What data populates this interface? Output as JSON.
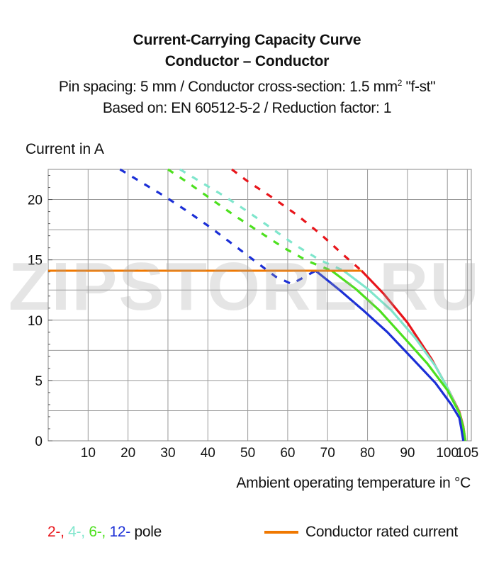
{
  "title": {
    "line1": "Current-Carrying Capacity Curve",
    "line2": "Conductor – Conductor",
    "line3_prefix": "Pin spacing: 5 mm / Conductor cross-section: 1.5 mm",
    "line3_sup": "2",
    "line3_suffix": " \"f-st\"",
    "line4": "Based on: EN 60512-5-2 / Reduction factor: 1"
  },
  "legend": {
    "p2": "2-,",
    "p4": "4-,",
    "p6": "6-,",
    "p12": "12-",
    "pole": "pole",
    "rated": "Conductor rated current"
  },
  "watermark": "ZIPSTORE.RU",
  "colors": {
    "p2": "#e8151b",
    "p4": "#7fe6cc",
    "p6": "#4de01e",
    "p12": "#1b2fd6",
    "rated": "#f07800",
    "grid": "#999999"
  },
  "chart_data": {
    "type": "line",
    "xlabel": "Ambient operating temperature in °C",
    "ylabel": "Current in A",
    "xlim": [
      0,
      106
    ],
    "ylim": [
      0,
      22.5
    ],
    "xticks": [
      10,
      20,
      30,
      40,
      50,
      60,
      70,
      80,
      90,
      100,
      105
    ],
    "yticks": [
      0,
      5,
      10,
      15,
      20
    ],
    "grid": true,
    "series": [
      {
        "name": "2-",
        "color": "#e8151b",
        "dashed": [
          [
            46,
            22.5
          ],
          [
            50,
            21.5
          ],
          [
            56,
            20.2
          ],
          [
            62,
            18.8
          ],
          [
            68,
            17.2
          ],
          [
            74,
            15.4
          ],
          [
            78.5,
            14.1
          ]
        ],
        "solid": [
          [
            78.5,
            14.1
          ],
          [
            84,
            12.2
          ],
          [
            90,
            9.8
          ],
          [
            96,
            6.8
          ],
          [
            100,
            4.4
          ],
          [
            103,
            2.4
          ],
          [
            104,
            1.2
          ],
          [
            104.5,
            0
          ]
        ]
      },
      {
        "name": "4-",
        "color": "#7fe6cc",
        "dashed": [
          [
            33,
            22.5
          ],
          [
            38,
            21.5
          ],
          [
            44,
            20.3
          ],
          [
            50,
            19.0
          ],
          [
            56,
            17.6
          ],
          [
            62,
            16.2
          ],
          [
            68,
            15.0
          ],
          [
            74,
            14.1
          ]
        ],
        "solid": [
          [
            74,
            14.1
          ],
          [
            80,
            12.6
          ],
          [
            86,
            10.8
          ],
          [
            92,
            8.5
          ],
          [
            97,
            6.2
          ],
          [
            100,
            4.4
          ],
          [
            103,
            2.3
          ],
          [
            104,
            1.1
          ],
          [
            104.5,
            0
          ]
        ]
      },
      {
        "name": "6-",
        "color": "#4de01e",
        "dashed": [
          [
            30,
            22.5
          ],
          [
            35,
            21.4
          ],
          [
            41,
            20.0
          ],
          [
            47,
            18.6
          ],
          [
            53,
            17.3
          ],
          [
            59,
            16.0
          ],
          [
            65,
            14.9
          ],
          [
            71,
            14.1
          ]
        ],
        "solid": [
          [
            71,
            14.1
          ],
          [
            77,
            12.6
          ],
          [
            83,
            10.8
          ],
          [
            89,
            8.6
          ],
          [
            95,
            6.4
          ],
          [
            100,
            4.2
          ],
          [
            103,
            2.3
          ],
          [
            104,
            1.1
          ],
          [
            104.5,
            0
          ]
        ]
      },
      {
        "name": "12-",
        "color": "#1b2fd6",
        "dashed": [
          [
            18,
            22.5
          ],
          [
            23,
            21.5
          ],
          [
            29,
            20.3
          ],
          [
            35,
            19.0
          ],
          [
            41,
            17.6
          ],
          [
            47,
            16.1
          ],
          [
            53,
            14.6
          ],
          [
            57,
            13.6
          ],
          [
            61,
            13.0
          ],
          [
            67,
            14.1
          ]
        ],
        "solid": [
          [
            67,
            14.1
          ],
          [
            73,
            12.5
          ],
          [
            79,
            10.8
          ],
          [
            85,
            9.0
          ],
          [
            91,
            6.9
          ],
          [
            97,
            4.8
          ],
          [
            101,
            3.0
          ],
          [
            103,
            1.9
          ],
          [
            103.5,
            1.0
          ],
          [
            104,
            0
          ]
        ]
      }
    ],
    "rated_current": {
      "name": "Conductor rated current",
      "value": 14.1,
      "x_start": 0,
      "x_end": 78.5,
      "color": "#f07800"
    }
  }
}
